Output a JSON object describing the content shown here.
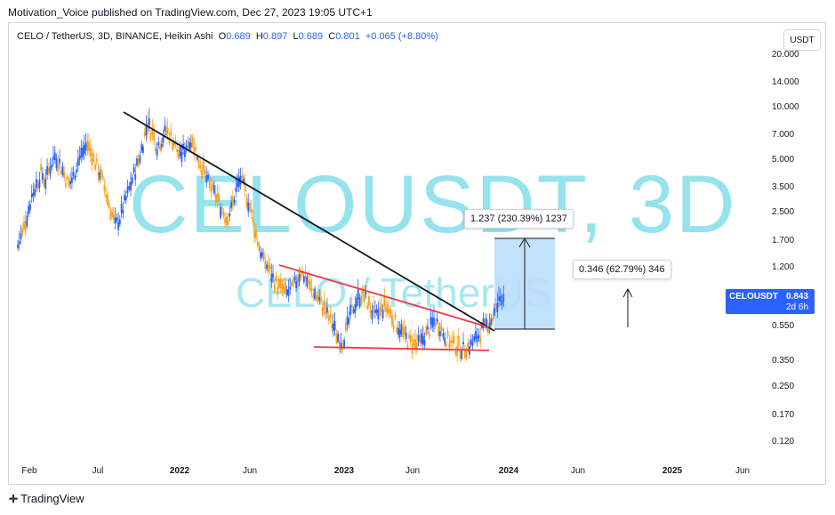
{
  "publisher": "Motivation_Voice published on TradingView.com, Dec 27, 2023 19:05 UTC+1",
  "legend": {
    "symbol": "CELO / TetherUS, 3D, BINANCE, Heikin Ashi",
    "o_label": "O",
    "o": "0.689",
    "h_label": "H",
    "h": "0.897",
    "l_label": "L",
    "l": "0.689",
    "c_label": "C",
    "c": "0.801",
    "change": "+0.065 (+8.80%)"
  },
  "currency_button": "USDT",
  "watermark": {
    "line1": "CELOUSDT, 3D",
    "line2": "CELO / TetherUS"
  },
  "price_tag": {
    "symbol": "CELOUSDT",
    "price": "0.843",
    "countdown": "2d 6h",
    "color": "#2962ff"
  },
  "measure_labels": {
    "big": "1.237 (230.39%) 1237",
    "small": "0.346 (62.79%) 346"
  },
  "footer": {
    "brand": "TradingView"
  },
  "colors": {
    "up": "#2962ff",
    "down": "#f7a21b",
    "trendline": "#131722",
    "wedge": "#f23645",
    "box": "#bbdefb"
  },
  "chart_data": {
    "type": "candlestick",
    "scale": "log",
    "y_ticks": [
      "20.000",
      "14.000",
      "10.000",
      "7.000",
      "5.000",
      "3.500",
      "2.500",
      "1.700",
      "1.200",
      "0.550",
      "0.350",
      "0.250",
      "0.170",
      "0.120"
    ],
    "x_ticks": [
      {
        "label": "Feb",
        "bold": false
      },
      {
        "label": "Jul",
        "bold": false
      },
      {
        "label": "2022",
        "bold": true
      },
      {
        "label": "Jun",
        "bold": false
      },
      {
        "label": "2023",
        "bold": true
      },
      {
        "label": "Jun",
        "bold": false
      },
      {
        "label": "2024",
        "bold": true
      },
      {
        "label": "Jun",
        "bold": false
      },
      {
        "label": "2025",
        "bold": true
      },
      {
        "label": "Jun",
        "bold": false
      }
    ],
    "ylim": [
      0.11,
      25
    ],
    "series": [
      {
        "values": [
          1.6,
          1.9,
          2.4,
          3.1,
          3.6,
          4.2,
          3.8,
          4.6,
          5.3,
          4.8,
          4.1,
          3.6,
          4.0,
          4.9,
          5.6,
          6.1,
          5.3,
          4.6,
          4.0,
          3.2,
          2.6,
          2.1,
          2.3,
          2.8,
          3.4,
          4.1,
          4.9,
          6.3,
          8.2,
          7.1,
          6.0,
          6.5,
          7.4,
          6.8,
          6.0,
          5.2,
          5.8,
          6.6,
          6.0,
          5.0,
          4.3,
          3.7,
          3.3,
          3.0,
          2.6,
          2.3,
          2.6,
          3.3,
          3.9,
          3.3,
          2.7,
          2.0,
          1.6,
          1.3,
          1.2,
          1.05,
          0.95,
          0.9,
          0.85,
          0.9,
          1.0,
          1.15,
          1.05,
          0.92,
          0.85,
          0.78,
          0.7,
          0.62,
          0.55,
          0.48,
          0.45,
          0.55,
          0.68,
          0.78,
          0.85,
          0.8,
          0.7,
          0.62,
          0.66,
          0.72,
          0.68,
          0.6,
          0.55,
          0.5,
          0.46,
          0.44,
          0.43,
          0.45,
          0.5,
          0.55,
          0.6,
          0.55,
          0.49,
          0.45,
          0.43,
          0.42,
          0.41,
          0.42,
          0.44,
          0.48,
          0.52,
          0.56,
          0.6,
          0.68,
          0.8,
          0.84
        ]
      }
    ],
    "annotations": [
      {
        "type": "trendline",
        "from": [
          8.9,
          "2021-08"
        ],
        "to": [
          0.56,
          "2023-11"
        ]
      },
      {
        "type": "wedge_upper",
        "from": [
          1.1,
          "2022-07"
        ],
        "to": [
          0.56,
          "2023-11"
        ]
      },
      {
        "type": "wedge_lower",
        "from": [
          0.4,
          "2022-10"
        ],
        "to": [
          0.39,
          "2023-11"
        ]
      },
      {
        "type": "price_range",
        "value": "1.237 (230.39%) 1237"
      },
      {
        "type": "price_range",
        "value": "0.346 (62.79%) 346"
      }
    ]
  }
}
